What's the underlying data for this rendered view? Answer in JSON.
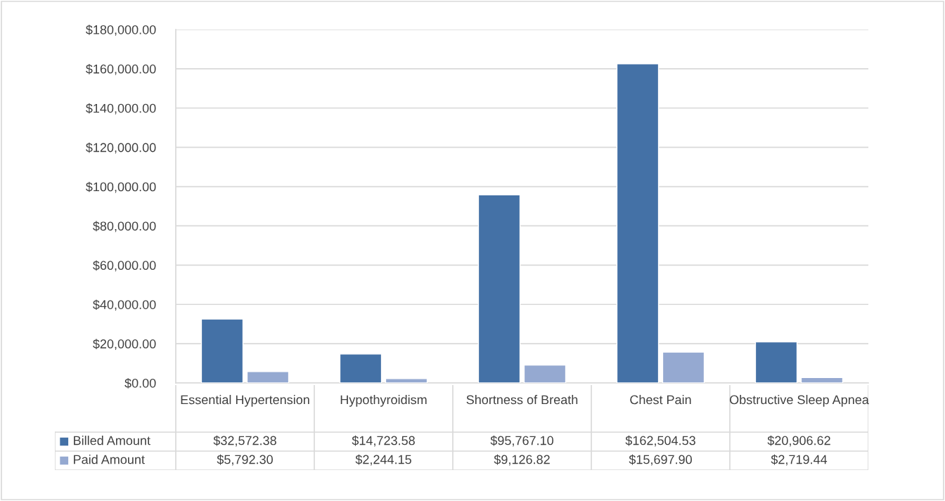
{
  "chart_data": {
    "type": "bar",
    "categories": [
      "Essential Hypertension",
      "Hypothyroidism",
      "Shortness of Breath",
      "Chest Pain",
      "Obstructive Sleep Apnea"
    ],
    "series": [
      {
        "name": "Billed Amount",
        "color": "#4471a6",
        "values": [
          32572.38,
          14723.58,
          95767.1,
          162504.53,
          20906.62
        ],
        "value_labels": [
          "$32,572.38",
          "$14,723.58",
          "$95,767.10",
          "$162,504.53",
          "$20,906.62"
        ]
      },
      {
        "name": "Paid Amount",
        "color": "#95a9d1",
        "values": [
          5792.3,
          2244.15,
          9126.82,
          15697.9,
          2719.44
        ],
        "value_labels": [
          "$5,792.30",
          "$2,244.15",
          "$9,126.82",
          "$15,697.90",
          "$2,719.44"
        ]
      }
    ],
    "ylim": [
      0,
      180000
    ],
    "yticks": [
      {
        "value": 0,
        "label": "$0.00"
      },
      {
        "value": 20000,
        "label": "$20,000.00"
      },
      {
        "value": 40000,
        "label": "$40,000.00"
      },
      {
        "value": 60000,
        "label": "$60,000.00"
      },
      {
        "value": 80000,
        "label": "$80,000.00"
      },
      {
        "value": 100000,
        "label": "$100,000.00"
      },
      {
        "value": 120000,
        "label": "$120,000.00"
      },
      {
        "value": 140000,
        "label": "$140,000.00"
      },
      {
        "value": 160000,
        "label": "$160,000.00"
      },
      {
        "value": 180000,
        "label": "$180,000.00"
      }
    ],
    "grid": "y",
    "legend": "bottom"
  }
}
